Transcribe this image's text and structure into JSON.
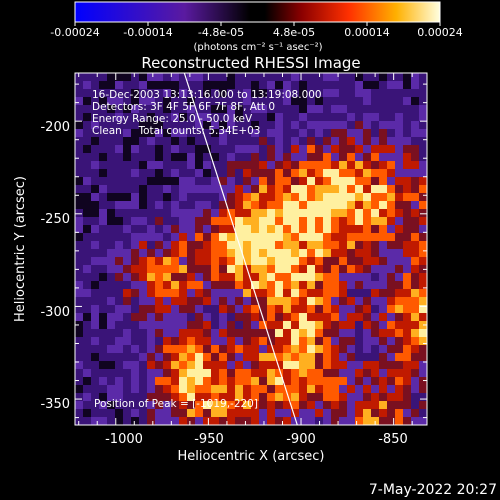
{
  "colorbar": {
    "ticks": [
      "-0.00024",
      "-0.00014",
      "-4.8e-05",
      "4.8e-05",
      "0.00014",
      "0.00024"
    ],
    "unit_label": "(photons cm⁻² s⁻¹ asec⁻²)"
  },
  "plot": {
    "title": "Reconstructed RHESSI Image",
    "xlabel": "Heliocentric X (arcsec)",
    "ylabel": "Heliocentric Y (arcsec)",
    "xticks": [
      "-1000",
      "-950",
      "-900",
      "-850"
    ],
    "yticks": [
      "-200",
      "-250",
      "-300",
      "-350"
    ],
    "xlim": [
      -1022,
      -832
    ],
    "ylim": [
      -364,
      -174
    ],
    "limb_line": {
      "x1": -963,
      "y1": -174,
      "x2": -902,
      "y2": -364
    }
  },
  "annotations": {
    "line1": "16-Dec-2003 13:13:16.000 to 13:19:08.000",
    "line2": "Detectors: 3F 4F 5F 6F 7F 8F, Att 0",
    "line3": "Energy Range: 25.0 - 50.0 keV",
    "line4": "Clean     Total counts: 5.34E+03",
    "peak": "Position of Peak = [-1019,-220]"
  },
  "footer": {
    "timestamp": "7-May-2022 20:27"
  }
}
